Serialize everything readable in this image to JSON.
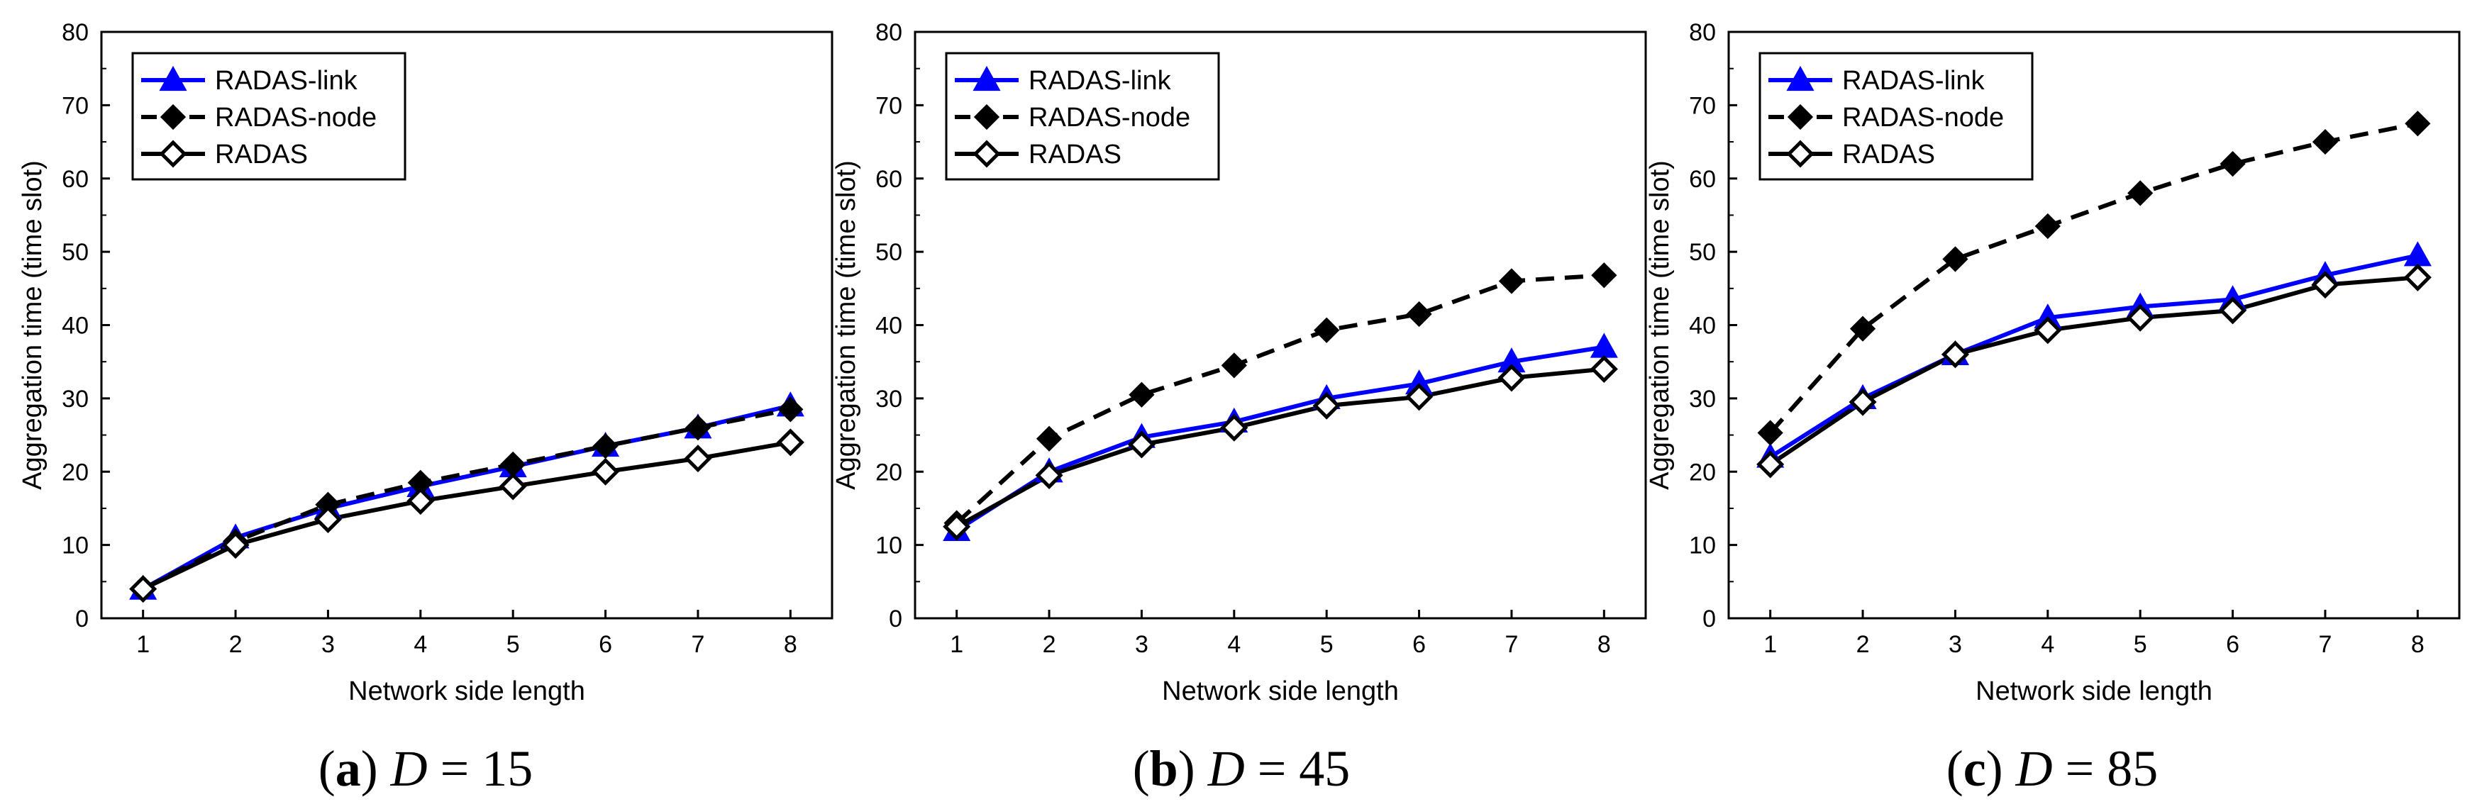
{
  "chart_data": [
    {
      "type": "line",
      "caption": {
        "letter": "(a)",
        "variable": "D",
        "operator": "=",
        "value": "15"
      },
      "xlabel": "Network side length",
      "ylabel": "Aggregation time (time slot)",
      "xlim": [
        0.55,
        8.45
      ],
      "ylim": [
        0,
        80
      ],
      "x": [
        1,
        2,
        3,
        4,
        5,
        6,
        7,
        8
      ],
      "x_ticks": [
        "1",
        "2",
        "3",
        "4",
        "5",
        "6",
        "7",
        "8"
      ],
      "y_ticks": [
        "0",
        "10",
        "20",
        "30",
        "40",
        "50",
        "60",
        "70",
        "80"
      ],
      "legend_position": "top-left",
      "series": [
        {
          "name": "RADAS-link",
          "color": "#0000ff",
          "line_style": "solid",
          "marker": "triangle-up-filled",
          "values": [
            4.0,
            11.0,
            15.0,
            18.0,
            20.7,
            23.5,
            26.0,
            29.0
          ]
        },
        {
          "name": "RADAS-node",
          "color": "#000000",
          "line_style": "dashed",
          "marker": "diamond-filled",
          "values": [
            4.0,
            10.5,
            15.5,
            18.5,
            21.0,
            23.5,
            26.0,
            28.5
          ]
        },
        {
          "name": "RADAS",
          "color": "#000000",
          "line_style": "solid",
          "marker": "diamond-open",
          "values": [
            4.0,
            10.0,
            13.5,
            16.0,
            18.0,
            20.0,
            21.8,
            24.0
          ]
        }
      ]
    },
    {
      "type": "line",
      "caption": {
        "letter": "(b)",
        "variable": "D",
        "operator": "=",
        "value": "45"
      },
      "xlabel": "Network side length",
      "ylabel": "Aggregation time (time slot)",
      "xlim": [
        0.55,
        8.45
      ],
      "ylim": [
        0,
        80
      ],
      "x": [
        1,
        2,
        3,
        4,
        5,
        6,
        7,
        8
      ],
      "x_ticks": [
        "1",
        "2",
        "3",
        "4",
        "5",
        "6",
        "7",
        "8"
      ],
      "y_ticks": [
        "0",
        "10",
        "20",
        "30",
        "40",
        "50",
        "60",
        "70",
        "80"
      ],
      "legend_position": "top-left",
      "series": [
        {
          "name": "RADAS-link",
          "color": "#0000ff",
          "line_style": "solid",
          "marker": "triangle-up-filled",
          "values": [
            12.0,
            20.0,
            24.7,
            26.8,
            30.0,
            32.0,
            35.0,
            37.0
          ]
        },
        {
          "name": "RADAS-node",
          "color": "#000000",
          "line_style": "dashed",
          "marker": "diamond-filled",
          "values": [
            13.0,
            24.5,
            30.5,
            34.5,
            39.3,
            41.5,
            46.0,
            46.8
          ]
        },
        {
          "name": "RADAS",
          "color": "#000000",
          "line_style": "solid",
          "marker": "diamond-open",
          "values": [
            12.5,
            19.5,
            23.7,
            26.0,
            29.0,
            30.2,
            32.8,
            34.0
          ]
        }
      ]
    },
    {
      "type": "line",
      "caption": {
        "letter": "(c)",
        "variable": "D",
        "operator": "=",
        "value": "85"
      },
      "xlabel": "Network side length",
      "ylabel": "Aggregation time (time slot)",
      "xlim": [
        0.55,
        8.45
      ],
      "ylim": [
        0,
        80
      ],
      "x": [
        1,
        2,
        3,
        4,
        5,
        6,
        7,
        8
      ],
      "x_ticks": [
        "1",
        "2",
        "3",
        "4",
        "5",
        "6",
        "7",
        "8"
      ],
      "y_ticks": [
        "0",
        "10",
        "20",
        "30",
        "40",
        "50",
        "60",
        "70",
        "80"
      ],
      "legend_position": "top-left",
      "series": [
        {
          "name": "RADAS-link",
          "color": "#0000ff",
          "line_style": "solid",
          "marker": "triangle-up-filled",
          "values": [
            22.0,
            30.0,
            36.0,
            41.0,
            42.5,
            43.5,
            46.8,
            49.5
          ]
        },
        {
          "name": "RADAS-node",
          "color": "#000000",
          "line_style": "dashed",
          "marker": "diamond-filled",
          "values": [
            25.3,
            39.5,
            49.0,
            53.5,
            58.0,
            62.0,
            65.0,
            67.5
          ]
        },
        {
          "name": "RADAS",
          "color": "#000000",
          "line_style": "solid",
          "marker": "diamond-open",
          "values": [
            21.0,
            29.5,
            36.0,
            39.3,
            41.0,
            42.0,
            45.5,
            46.5
          ]
        }
      ]
    }
  ]
}
